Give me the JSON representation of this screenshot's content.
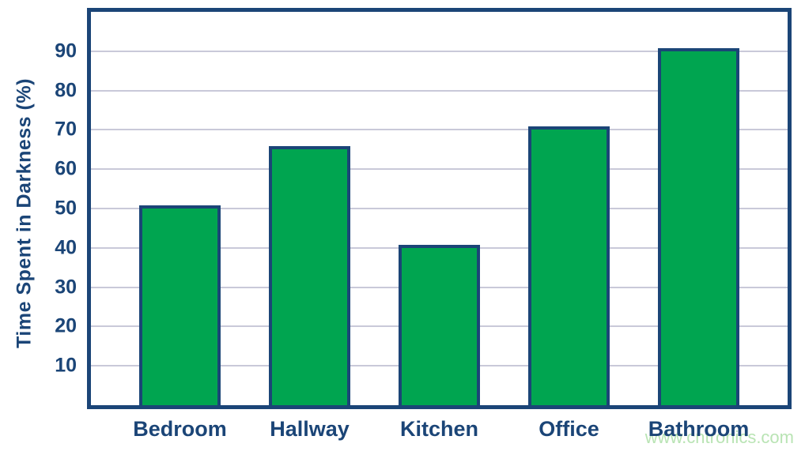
{
  "chart_data": {
    "type": "bar",
    "title": "",
    "categories": [
      "Bedroom",
      "Hallway",
      "Kitchen",
      "Office",
      "Bathroom"
    ],
    "values": [
      50,
      65,
      40,
      70,
      90
    ],
    "xlabel": "",
    "ylabel": "Time Spent in Darkness (%)",
    "ylim": [
      0,
      100
    ],
    "yticks": [
      10,
      20,
      30,
      40,
      50,
      60,
      70,
      80,
      90
    ],
    "grid": true,
    "legend_position": "none",
    "colors": {
      "bar_fill": "#00a550",
      "bar_border": "#1b4577",
      "plot_frame": "#1b4577",
      "gridline": "#c9c9d9",
      "text": "#1b4577"
    }
  },
  "watermark": {
    "text": "www.cntronics.com",
    "color": "#b9e4b4"
  }
}
